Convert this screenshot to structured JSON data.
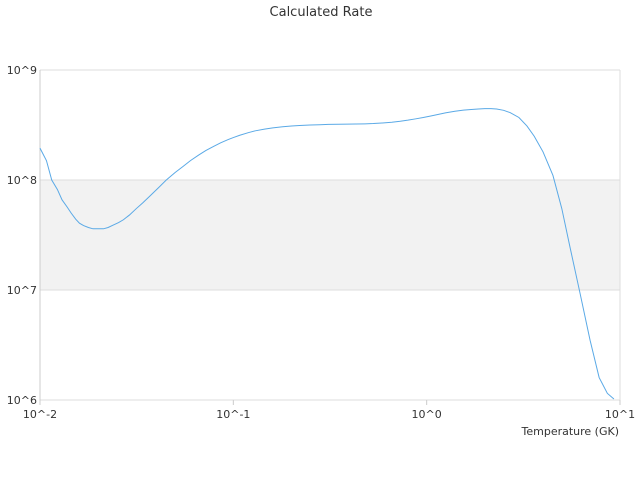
{
  "chart_data": {
    "type": "line",
    "title": "Calculated Rate",
    "xlabel": "Temperature (GK)",
    "ylabel": "",
    "x_scale": "log",
    "y_scale": "log",
    "xlim": [
      0.01,
      10
    ],
    "ylim": [
      1000000,
      1000000000
    ],
    "x_ticks": [
      "10^-2",
      "10^-1",
      "10^0",
      "10^1"
    ],
    "y_ticks": [
      "10^6",
      "10^7",
      "10^8",
      "10^9"
    ],
    "grid": true,
    "band": [
      10000000,
      100000000
    ],
    "colors": {
      "line": "#5aa9e6",
      "band": "#f2f2f2",
      "gridline": "#dddddd",
      "axis": "#cccccc"
    },
    "series": [
      {
        "name": "",
        "x": [
          0.01,
          0.0108,
          0.0115,
          0.0123,
          0.013,
          0.0138,
          0.0145,
          0.0153,
          0.016,
          0.0168,
          0.0178,
          0.0188,
          0.02,
          0.0213,
          0.0225,
          0.024,
          0.0255,
          0.027,
          0.029,
          0.0315,
          0.034,
          0.0375,
          0.041,
          0.045,
          0.05,
          0.055,
          0.06,
          0.066,
          0.072,
          0.079,
          0.086,
          0.094,
          0.1,
          0.108,
          0.12,
          0.13,
          0.145,
          0.16,
          0.18,
          0.2,
          0.22,
          0.25,
          0.28,
          0.31,
          0.35,
          0.39,
          0.43,
          0.48,
          0.53,
          0.59,
          0.66,
          0.73,
          0.8,
          0.88,
          0.96,
          1.05,
          1.15,
          1.25,
          1.4,
          1.55,
          1.7,
          1.85,
          2.0,
          2.15,
          2.3,
          2.5,
          2.7,
          3.0,
          3.3,
          3.6,
          4.0,
          4.5,
          5.0,
          5.5,
          6.2,
          7.0,
          7.8,
          8.6,
          9.3
        ],
        "y": [
          195000000.0,
          150000000.0,
          100000000.0,
          82000000.0,
          66000000.0,
          57000000.0,
          50000000.0,
          44000000.0,
          40500000.0,
          38500000.0,
          37000000.0,
          36000000.0,
          36000000.0,
          36000000.0,
          37000000.0,
          39000000.0,
          41000000.0,
          43500000.0,
          48000000.0,
          55000000.0,
          62000000.0,
          73000000.0,
          85000000.0,
          100000000.0,
          117000000.0,
          133000000.0,
          150000000.0,
          168000000.0,
          185000000.0,
          202000000.0,
          218000000.0,
          233000000.0,
          243000000.0,
          255000000.0,
          270000000.0,
          280000000.0,
          290000000.0,
          298000000.0,
          305000000.0,
          310000000.0,
          313000000.0,
          316000000.0,
          318000000.0,
          320000000.0,
          321000000.0,
          322000000.0,
          323000000.0,
          324000000.0,
          326000000.0,
          330000000.0,
          335000000.0,
          342000000.0,
          350000000.0,
          360000000.0,
          370000000.0,
          382000000.0,
          395000000.0,
          408000000.0,
          422000000.0,
          432000000.0,
          438000000.0,
          442000000.0,
          445000000.0,
          445000000.0,
          442000000.0,
          430000000.0,
          410000000.0,
          370000000.0,
          310000000.0,
          250000000.0,
          180000000.0,
          110000000.0,
          55000000.0,
          25000000.0,
          9500000.0,
          3500000.0,
          1600000.0,
          1150000.0,
          1020000.0
        ]
      }
    ]
  }
}
